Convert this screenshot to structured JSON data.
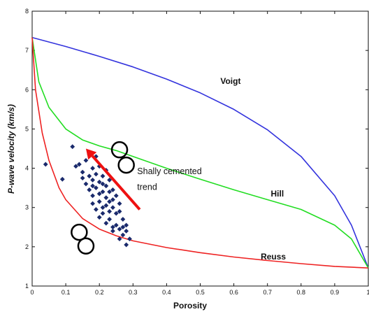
{
  "chart_data": {
    "type": "scatter",
    "title": "",
    "xlabel": "Porosity",
    "ylabel": "P-wave velocity (km/s)",
    "xlim": [
      0,
      1
    ],
    "ylim": [
      1,
      8
    ],
    "xticks": [
      "0",
      "0.1",
      "0.2",
      "0.3",
      "0.4",
      "0.5",
      "0.6",
      "0.7",
      "0.8",
      "0.9",
      "1"
    ],
    "yticks": [
      "1",
      "2",
      "3",
      "4",
      "5",
      "6",
      "7",
      "8"
    ],
    "grid": false,
    "colors": {
      "voigt": "#3333dd",
      "hill": "#22dd22",
      "reuss": "#ee2222",
      "points": "#1a2a6c",
      "arrow": "#ee1111"
    },
    "curves": [
      {
        "name": "Voigt",
        "label": "Voigt",
        "x": [
          0,
          0.1,
          0.2,
          0.3,
          0.4,
          0.5,
          0.6,
          0.7,
          0.8,
          0.9,
          0.95,
          1.0
        ],
        "y": [
          7.33,
          7.1,
          6.85,
          6.58,
          6.27,
          5.92,
          5.5,
          4.98,
          4.3,
          3.3,
          2.55,
          1.46
        ]
      },
      {
        "name": "Hill",
        "label": "Hill",
        "x": [
          0,
          0.02,
          0.05,
          0.1,
          0.15,
          0.2,
          0.25,
          0.3,
          0.4,
          0.5,
          0.6,
          0.7,
          0.8,
          0.9,
          0.95,
          1.0
        ],
        "y": [
          7.33,
          6.2,
          5.55,
          5.0,
          4.72,
          4.57,
          4.45,
          4.3,
          4.0,
          3.72,
          3.45,
          3.2,
          2.95,
          2.55,
          2.2,
          1.46
        ]
      },
      {
        "name": "Reuss",
        "label": "Reuss",
        "x": [
          0,
          0.01,
          0.03,
          0.05,
          0.08,
          0.1,
          0.15,
          0.2,
          0.25,
          0.3,
          0.4,
          0.5,
          0.6,
          0.7,
          0.8,
          0.9,
          1.0
        ],
        "y": [
          7.33,
          6.0,
          4.9,
          4.2,
          3.5,
          3.2,
          2.72,
          2.45,
          2.28,
          2.15,
          1.98,
          1.85,
          1.74,
          1.65,
          1.57,
          1.5,
          1.46
        ]
      }
    ],
    "curve_label_positions": [
      {
        "name": "Voigt",
        "x": 0.56,
        "y": 6.15
      },
      {
        "name": "Hill",
        "x": 0.71,
        "y": 3.28
      },
      {
        "name": "Reuss",
        "x": 0.68,
        "y": 1.68
      }
    ],
    "points": [
      [
        0.04,
        4.1
      ],
      [
        0.09,
        3.72
      ],
      [
        0.12,
        4.55
      ],
      [
        0.13,
        4.05
      ],
      [
        0.14,
        4.1
      ],
      [
        0.15,
        3.9
      ],
      [
        0.16,
        4.2
      ],
      [
        0.17,
        4.35
      ],
      [
        0.18,
        4.0
      ],
      [
        0.19,
        4.3
      ],
      [
        0.15,
        3.75
      ],
      [
        0.16,
        3.6
      ],
      [
        0.17,
        3.8
      ],
      [
        0.18,
        3.7
      ],
      [
        0.19,
        3.85
      ],
      [
        0.2,
        3.65
      ],
      [
        0.21,
        3.8
      ],
      [
        0.22,
        3.55
      ],
      [
        0.23,
        3.7
      ],
      [
        0.24,
        3.45
      ],
      [
        0.17,
        3.45
      ],
      [
        0.18,
        3.3
      ],
      [
        0.19,
        3.5
      ],
      [
        0.2,
        3.35
      ],
      [
        0.21,
        3.4
      ],
      [
        0.22,
        3.25
      ],
      [
        0.23,
        3.4
      ],
      [
        0.24,
        3.2
      ],
      [
        0.25,
        3.3
      ],
      [
        0.26,
        3.1
      ],
      [
        0.18,
        3.1
      ],
      [
        0.19,
        2.95
      ],
      [
        0.2,
        3.15
      ],
      [
        0.21,
        3.0
      ],
      [
        0.22,
        3.05
      ],
      [
        0.23,
        2.9
      ],
      [
        0.24,
        3.0
      ],
      [
        0.25,
        2.85
      ],
      [
        0.26,
        2.9
      ],
      [
        0.27,
        2.7
      ],
      [
        0.2,
        2.75
      ],
      [
        0.21,
        2.85
      ],
      [
        0.22,
        2.6
      ],
      [
        0.23,
        2.7
      ],
      [
        0.24,
        2.5
      ],
      [
        0.25,
        2.55
      ],
      [
        0.26,
        2.45
      ],
      [
        0.27,
        2.5
      ],
      [
        0.28,
        2.4
      ],
      [
        0.29,
        2.2
      ],
      [
        0.27,
        2.3
      ],
      [
        0.28,
        2.55
      ],
      [
        0.26,
        2.2
      ],
      [
        0.28,
        2.05
      ],
      [
        0.24,
        2.4
      ],
      [
        0.22,
        3.95
      ],
      [
        0.2,
        4.05
      ],
      [
        0.18,
        3.55
      ],
      [
        0.21,
        3.6
      ],
      [
        0.23,
        3.15
      ]
    ],
    "annotations": [
      {
        "text": "Shally cemented",
        "x": 0.3,
        "y": 3.85
      },
      {
        "text": "trend",
        "x": 0.3,
        "y": 3.45
      }
    ],
    "arrow": {
      "from": [
        0.32,
        2.95
      ],
      "to": [
        0.16,
        4.5
      ]
    },
    "circle_markers": [
      {
        "x": 0.26,
        "y": 4.47
      },
      {
        "x": 0.28,
        "y": 4.08
      },
      {
        "x": 0.14,
        "y": 2.37
      },
      {
        "x": 0.16,
        "y": 2.02
      }
    ]
  }
}
